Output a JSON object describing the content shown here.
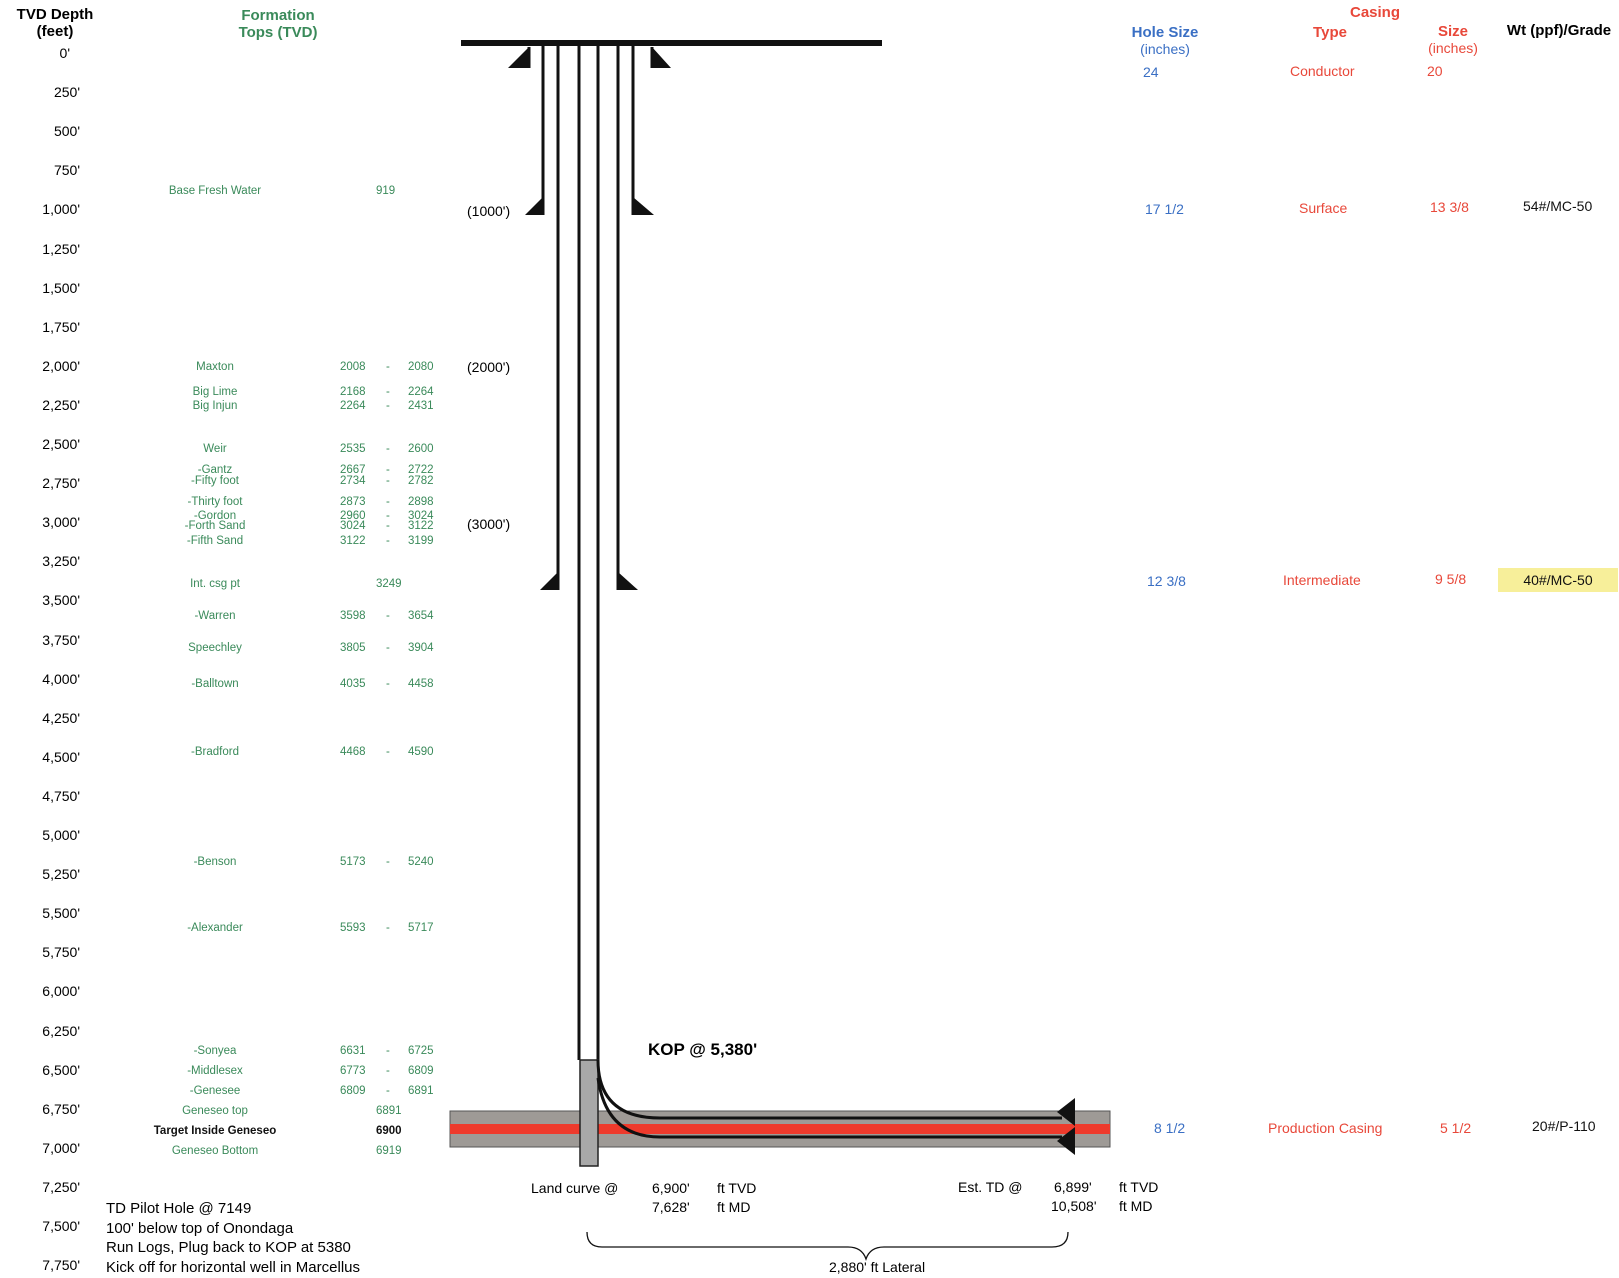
{
  "headers": {
    "tvd_depth": "TVD Depth",
    "tvd_feet": "(feet)",
    "formation": "Formation",
    "tops_tvd": "Tops (TVD)",
    "hole_size": "Hole Size",
    "hole_inches": "(inches)",
    "casing": "Casing",
    "type": "Type",
    "size": "Size",
    "size_inches": "(inches)",
    "wt_grade": "Wt (ppf)/Grade"
  },
  "depth_scale": [
    "0'",
    "250'",
    "500'",
    "750'",
    "1,000'",
    "1,250'",
    "1,500'",
    "1,750'",
    "2,000'",
    "2,250'",
    "2,500'",
    "2,750'",
    "3,000'",
    "3,250'",
    "3,500'",
    "3,750'",
    "4,000'",
    "4,250'",
    "4,500'",
    "4,750'",
    "5,000'",
    "5,250'",
    "5,500'",
    "5,750'",
    "6,000'",
    "6,250'",
    "6,500'",
    "6,750'",
    "7,000'",
    "7,250'",
    "7,500'",
    "7,750'"
  ],
  "formations": [
    {
      "name": "Base Fresh Water",
      "top": "919",
      "bottom": ""
    },
    {
      "name": "Maxton",
      "top": "2008",
      "bottom": "2080"
    },
    {
      "name": "Big Lime",
      "top": "2168",
      "bottom": "2264"
    },
    {
      "name": "Big Injun",
      "top": "2264",
      "bottom": "2431"
    },
    {
      "name": "Weir",
      "top": "2535",
      "bottom": "2600"
    },
    {
      "name": "-Gantz",
      "top": "2667",
      "bottom": "2722"
    },
    {
      "name": "-Fifty foot",
      "top": "2734",
      "bottom": "2782"
    },
    {
      "name": "-Thirty foot",
      "top": "2873",
      "bottom": "2898"
    },
    {
      "name": "-Gordon",
      "top": "2960",
      "bottom": "3024"
    },
    {
      "name": "-Forth Sand",
      "top": "3024",
      "bottom": "3122"
    },
    {
      "name": "-Fifth Sand",
      "top": "3122",
      "bottom": "3199"
    },
    {
      "name": "Int. csg pt",
      "top": "3249",
      "bottom": ""
    },
    {
      "name": "-Warren",
      "top": "3598",
      "bottom": "3654"
    },
    {
      "name": "Speechley",
      "top": "3805",
      "bottom": "3904"
    },
    {
      "name": "-Balltown",
      "top": "4035",
      "bottom": "4458"
    },
    {
      "name": "-Bradford",
      "top": "4468",
      "bottom": "4590"
    },
    {
      "name": "-Benson",
      "top": "5173",
      "bottom": "5240"
    },
    {
      "name": "-Alexander",
      "top": "5593",
      "bottom": "5717"
    },
    {
      "name": "-Sonyea",
      "top": "6631",
      "bottom": "6725"
    },
    {
      "name": "-Middlesex",
      "top": "6773",
      "bottom": "6809"
    },
    {
      "name": "-Genesee",
      "top": "6809",
      "bottom": "6891"
    },
    {
      "name": "Geneseo top",
      "top": "6891",
      "bottom": ""
    },
    {
      "name": "Target Inside Geneseo",
      "top": "6900",
      "bottom": ""
    },
    {
      "name": "Geneseo Bottom",
      "top": "6919",
      "bottom": ""
    }
  ],
  "formation_dash": "-",
  "well_labels": {
    "surface_depth": "(1000')",
    "depth_2000": "(2000')",
    "depth_3000": "(3000')",
    "kop": "KOP @  5,380'",
    "land_curve": "Land curve @",
    "land_tvd": "6,900'",
    "land_md": "7,628'",
    "ft_tvd": "ft TVD",
    "ft_md": "ft MD",
    "est_td": "Est. TD @",
    "td_tvd": "6,899'",
    "td_md": "10,508'",
    "lateral": "2,880'  ft Lateral"
  },
  "casing_rows": [
    {
      "hole": "24",
      "type": "Conductor",
      "size": "20",
      "grade": ""
    },
    {
      "hole": "17 1/2",
      "type": "Surface",
      "size": "13 3/8",
      "grade": "54#/MC-50"
    },
    {
      "hole": "12 3/8",
      "type": "Intermediate",
      "size": "9 5/8",
      "grade": "40#/MC-50"
    },
    {
      "hole": "8 1/2",
      "type": "Production Casing",
      "size": "5 1/2",
      "grade": "20#/P-110"
    }
  ],
  "notes": [
    "TD Pilot Hole @ 7149",
    "100' below top of Onondaga",
    "Run Logs, Plug back to KOP at 5380",
    "Kick off for horizontal well in Marcellus"
  ],
  "colors": {
    "green": "#3a8a5a",
    "blue": "#3a6fc4",
    "red": "#e8483a",
    "highlight": "#f7ef9a",
    "formation_band": "#9e9a96",
    "production_line": "#ee3a2c"
  }
}
